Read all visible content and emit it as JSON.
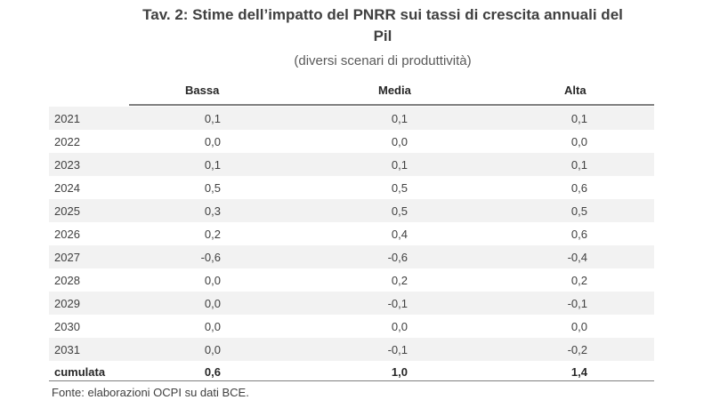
{
  "title_line1": "Tav. 2: Stime dell’impatto del PNRR sui tassi di crescita annuali del",
  "title_line2": "Pil",
  "subtitle": "(diversi scenari di produttività)",
  "columns": [
    "Bassa",
    "Media",
    "Alta"
  ],
  "rows": [
    {
      "year": "2021",
      "bassa": "0,1",
      "media": "0,1",
      "alta": "0,1"
    },
    {
      "year": "2022",
      "bassa": "0,0",
      "media": "0,0",
      "alta": "0,0"
    },
    {
      "year": "2023",
      "bassa": "0,1",
      "media": "0,1",
      "alta": "0,1"
    },
    {
      "year": "2024",
      "bassa": "0,5",
      "media": "0,5",
      "alta": "0,6"
    },
    {
      "year": "2025",
      "bassa": "0,3",
      "media": "0,5",
      "alta": "0,5"
    },
    {
      "year": "2026",
      "bassa": "0,2",
      "media": "0,4",
      "alta": "0,6"
    },
    {
      "year": "2027",
      "bassa": "-0,6",
      "media": "-0,6",
      "alta": "-0,4"
    },
    {
      "year": "2028",
      "bassa": "0,0",
      "media": "0,2",
      "alta": "0,2"
    },
    {
      "year": "2029",
      "bassa": "0,0",
      "media": "-0,1",
      "alta": "-0,1"
    },
    {
      "year": "2030",
      "bassa": "0,0",
      "media": "0,0",
      "alta": "0,0"
    },
    {
      "year": "2031",
      "bassa": "0,0",
      "media": "-0,1",
      "alta": "-0,2"
    }
  ],
  "total": {
    "label": "cumulata",
    "bassa": "0,6",
    "media": "1,0",
    "alta": "1,4"
  },
  "source": "Fonte: elaborazioni OCPI su dati BCE."
}
